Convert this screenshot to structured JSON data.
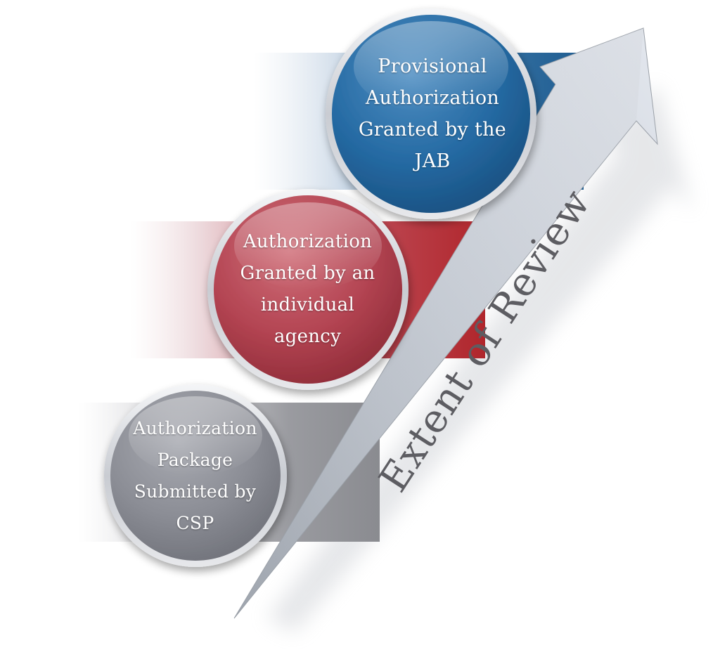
{
  "diagram": {
    "steps": [
      {
        "id": "jab",
        "lines": [
          "Provisional",
          "Authorization",
          "Granted by the",
          "JAB"
        ],
        "color": "#24639a"
      },
      {
        "id": "agency",
        "lines": [
          "Authorization",
          "Granted by an",
          "individual",
          "agency"
        ],
        "color": "#b0414e"
      },
      {
        "id": "csp",
        "lines": [
          "Authorization",
          "Package",
          "Submitted by",
          "CSP"
        ],
        "color": "#8a8c94"
      }
    ],
    "arrow": {
      "label": "Extent of Review",
      "color": "#b9bfc9"
    }
  }
}
